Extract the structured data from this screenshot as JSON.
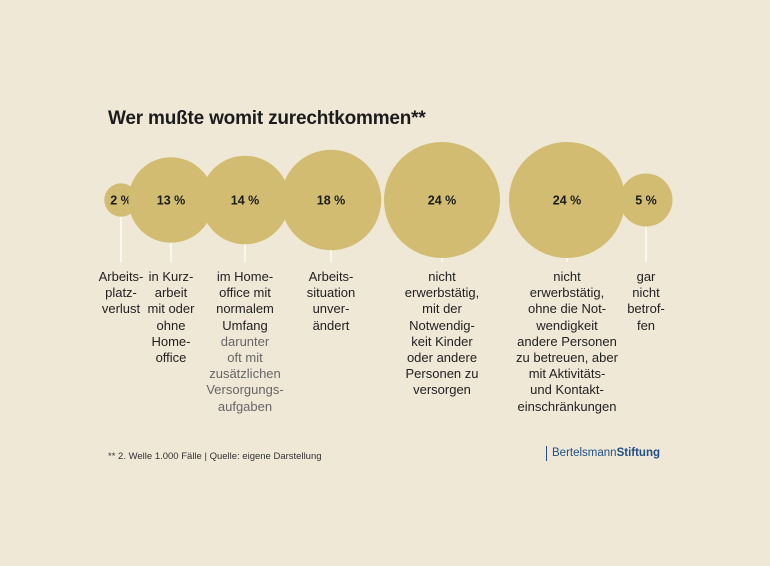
{
  "chart_data": {
    "type": "bubble",
    "title": "Wer mußte womit zurechtkommen**",
    "unit": "%",
    "categories": [
      {
        "label": "Arbeits-\nplatz-\nverlust",
        "sublabel": "",
        "value": 2,
        "value_label": "2 %"
      },
      {
        "label": "in Kurz-\narbeit\nmit oder\nohne\nHome-\noffice",
        "sublabel": "",
        "value": 13,
        "value_label": "13 %"
      },
      {
        "label": "im Home-\noffice mit\nnormalem\nUmfang",
        "sublabel": "darunter\noft mit\nzusätzlichen\nVersorgungs-\naufgaben",
        "value": 14,
        "value_label": "14 %"
      },
      {
        "label": "Arbeits-\nsituation\nunver-\nändert",
        "sublabel": "",
        "value": 18,
        "value_label": "18 %"
      },
      {
        "label": "nicht\nerwerbstätig,\nmit der\nNotwendig-\nkeit Kinder\noder andere\nPersonen zu\nversorgen",
        "sublabel": "",
        "value": 24,
        "value_label": "24 %"
      },
      {
        "label": "nicht\nerwerbstätig,\nohne die Not-\nwendigkeit\nandere Personen\nzu betreuen, aber\nmit Aktivitäts-\nund Kontakt-\neinschränkungen",
        "sublabel": "",
        "value": 24,
        "value_label": "24 %"
      },
      {
        "label": "gar\nnicht\nbetrof-\nfen",
        "sublabel": "",
        "value": 5,
        "value_label": "5 %"
      }
    ],
    "bubble_color": "#d1bc72",
    "line_color": "#ffffff",
    "background": "#efe8d7"
  },
  "footnote": "** 2. Welle 1.000 Fälle  |  Quelle: eigene Darstellung",
  "brand": {
    "part1": "Bertelsmann",
    "part2": "Stiftung",
    "color": "#1f4f85"
  }
}
